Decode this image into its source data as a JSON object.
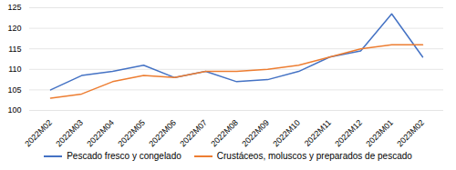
{
  "chart_data": {
    "type": "line",
    "categories": [
      "2022M02",
      "2022M03",
      "2022M04",
      "2022M05",
      "2022M06",
      "2022M07",
      "2022M08",
      "2022M09",
      "2022M10",
      "2022M11",
      "2022M12",
      "2023M01",
      "2023M02"
    ],
    "series": [
      {
        "name": "Pescado fresco y congelado",
        "color": "#4472C4",
        "values": [
          105.0,
          108.5,
          109.5,
          111.0,
          108.0,
          109.5,
          107.0,
          107.5,
          109.5,
          113.0,
          114.5,
          123.5,
          113.0
        ]
      },
      {
        "name": "Crustáceos, moluscos y preparados de pescado",
        "color": "#ED7D31",
        "values": [
          103.0,
          104.0,
          107.0,
          108.5,
          108.0,
          109.5,
          109.5,
          110.0,
          111.0,
          113.0,
          115.0,
          116.0,
          116.0
        ]
      }
    ],
    "ylim": [
      100,
      125
    ],
    "yticks": [
      100,
      105,
      110,
      115,
      120,
      125
    ],
    "grid": true,
    "legend": "bottom"
  }
}
